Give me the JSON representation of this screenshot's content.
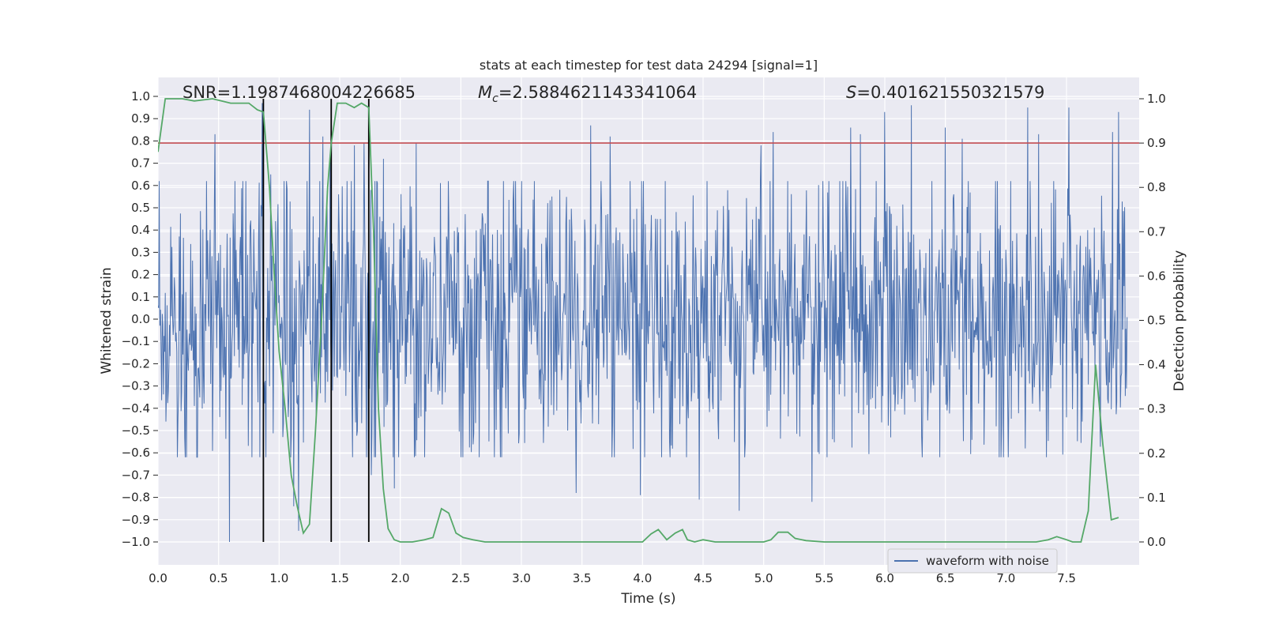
{
  "chart_data": {
    "type": "line",
    "title": "stats at each timestep for test data 24294 [signal=1]",
    "xlabel": "Time (s)",
    "ylabel_left": "Whitened strain",
    "ylabel_right": "Detection probability",
    "xlim": [
      0.0,
      8.0
    ],
    "ylim_left": [
      -1.1,
      1.1
    ],
    "ylim_right": [
      -0.05,
      1.03
    ],
    "x_ticks": [
      0.0,
      0.5,
      1.0,
      1.5,
      2.0,
      2.5,
      3.0,
      3.5,
      4.0,
      4.5,
      5.0,
      5.5,
      6.0,
      6.5,
      7.0,
      7.5
    ],
    "x_tick_labels": [
      "0.0",
      "0.5",
      "1.0",
      "1.5",
      "2.0",
      "2.5",
      "3.0",
      "3.5",
      "4.0",
      "4.5",
      "5.0",
      "5.5",
      "6.0",
      "6.5",
      "7.0",
      "7.5"
    ],
    "y_left_ticks": [
      1.0,
      0.9,
      0.8,
      0.7,
      0.6,
      0.5,
      0.4,
      0.3,
      0.2,
      0.1,
      0.0,
      -0.1,
      -0.2,
      -0.3,
      -0.4,
      -0.5,
      -0.6,
      -0.7,
      -0.8,
      -0.9,
      -1.0
    ],
    "y_left_tick_labels": [
      "1.0",
      "0.9",
      "0.8",
      "0.7",
      "0.6",
      "0.5",
      "0.4",
      "0.3",
      "0.2",
      "0.1",
      "0.0",
      "−0.1",
      "−0.2",
      "−0.3",
      "−0.4",
      "−0.5",
      "−0.6",
      "−0.7",
      "−0.8",
      "−0.9",
      "−1.0"
    ],
    "y_right_ticks": [
      1.0,
      0.9,
      0.8,
      0.7,
      0.6,
      0.5,
      0.4,
      0.3,
      0.2,
      0.1,
      0.0
    ],
    "y_right_tick_labels": [
      "1.0",
      "0.9",
      "0.8",
      "0.7",
      "0.6",
      "0.5",
      "0.4",
      "0.3",
      "0.2",
      "0.1",
      "0.0"
    ],
    "annotations": {
      "snr": "SNR=1.1987468004226685",
      "mc_symbol": "M",
      "mc_sub": "c",
      "mc_value": "=2.5884621143341064",
      "s_symbol": "S",
      "s_value": "=0.401621550321579"
    },
    "legend": {
      "label": "waveform with noise",
      "location": "lower-right"
    },
    "threshold": {
      "value": 0.9,
      "color": "#c44e52"
    },
    "vertical_lines": [
      0.87,
      1.43,
      1.74
    ],
    "waveform": {
      "name": "waveform with noise",
      "color": "#4c72b0",
      "duration": 8.0,
      "samples": 1600,
      "typical_amplitude": 0.32,
      "spikes": [
        {
          "t": 0.47,
          "v": 0.83
        },
        {
          "t": 0.59,
          "v": -1.0
        },
        {
          "t": 0.86,
          "v": -0.69
        },
        {
          "t": 0.93,
          "v": 0.65
        },
        {
          "t": 1.12,
          "v": -0.84
        },
        {
          "t": 1.16,
          "v": -0.95
        },
        {
          "t": 1.25,
          "v": 0.94
        },
        {
          "t": 1.36,
          "v": 0.82
        },
        {
          "t": 1.42,
          "v": 0.74
        },
        {
          "t": 1.7,
          "v": 0.79
        },
        {
          "t": 1.76,
          "v": -0.7
        },
        {
          "t": 1.86,
          "v": 0.72
        },
        {
          "t": 1.95,
          "v": -0.76
        },
        {
          "t": 2.13,
          "v": 0.79
        },
        {
          "t": 3.45,
          "v": -0.78
        },
        {
          "t": 3.57,
          "v": 0.87
        },
        {
          "t": 3.73,
          "v": 0.82
        },
        {
          "t": 3.98,
          "v": -0.79
        },
        {
          "t": 4.47,
          "v": -0.81
        },
        {
          "t": 4.8,
          "v": -0.86
        },
        {
          "t": 5.08,
          "v": 0.84
        },
        {
          "t": 5.4,
          "v": -0.82
        },
        {
          "t": 5.72,
          "v": 0.86
        },
        {
          "t": 5.8,
          "v": 0.83
        },
        {
          "t": 6.0,
          "v": 0.93
        },
        {
          "t": 6.22,
          "v": 0.96
        },
        {
          "t": 6.5,
          "v": 0.86
        },
        {
          "t": 6.64,
          "v": 0.81
        },
        {
          "t": 7.18,
          "v": 0.95
        },
        {
          "t": 7.27,
          "v": 0.83
        },
        {
          "t": 7.52,
          "v": 0.95
        },
        {
          "t": 7.88,
          "v": 0.84
        },
        {
          "t": 7.93,
          "v": 0.93
        },
        {
          "t": 0.86,
          "v": 0.97
        },
        {
          "t": 1.62,
          "v": 0.78
        },
        {
          "t": 4.98,
          "v": 0.78
        }
      ]
    },
    "detection_probability": {
      "name": "detection probability",
      "color": "#55a868",
      "x": [
        0.0,
        0.06,
        0.12,
        0.2,
        0.3,
        0.45,
        0.6,
        0.75,
        0.82,
        0.87,
        0.92,
        0.96,
        1.0,
        1.05,
        1.1,
        1.15,
        1.2,
        1.25,
        1.3,
        1.35,
        1.4,
        1.43,
        1.48,
        1.55,
        1.62,
        1.68,
        1.74,
        1.78,
        1.82,
        1.86,
        1.9,
        1.95,
        2.0,
        2.1,
        2.2,
        2.27,
        2.34,
        2.4,
        2.46,
        2.52,
        2.6,
        2.7,
        2.8,
        3.0,
        3.2,
        3.4,
        3.6,
        3.8,
        4.0,
        4.07,
        4.13,
        4.2,
        4.27,
        4.33,
        4.37,
        4.43,
        4.5,
        4.6,
        4.7,
        4.8,
        4.9,
        5.0,
        5.06,
        5.12,
        5.2,
        5.26,
        5.35,
        5.5,
        5.7,
        5.9,
        6.1,
        6.3,
        6.5,
        6.7,
        6.9,
        7.1,
        7.25,
        7.35,
        7.42,
        7.5,
        7.55,
        7.62,
        7.68,
        7.74,
        7.8,
        7.87,
        7.93
      ],
      "y": [
        0.88,
        1.0,
        1.0,
        1.0,
        0.995,
        1.0,
        0.99,
        0.99,
        0.975,
        0.97,
        0.8,
        0.6,
        0.43,
        0.3,
        0.15,
        0.08,
        0.02,
        0.04,
        0.25,
        0.5,
        0.8,
        0.9,
        0.99,
        0.99,
        0.98,
        0.99,
        0.98,
        0.7,
        0.3,
        0.12,
        0.03,
        0.005,
        0.0,
        0.0,
        0.005,
        0.01,
        0.075,
        0.065,
        0.02,
        0.01,
        0.005,
        0.0,
        0.0,
        0.0,
        0.0,
        0.0,
        0.0,
        0.0,
        0.0,
        0.018,
        0.028,
        0.005,
        0.02,
        0.028,
        0.005,
        0.0,
        0.005,
        0.0,
        0.0,
        0.0,
        0.0,
        0.0,
        0.005,
        0.022,
        0.022,
        0.008,
        0.003,
        0.0,
        0.0,
        0.0,
        0.0,
        0.0,
        0.0,
        0.0,
        0.0,
        0.0,
        0.0,
        0.005,
        0.012,
        0.005,
        0.0,
        0.0,
        0.07,
        0.4,
        0.22,
        0.05,
        0.055
      ]
    }
  }
}
